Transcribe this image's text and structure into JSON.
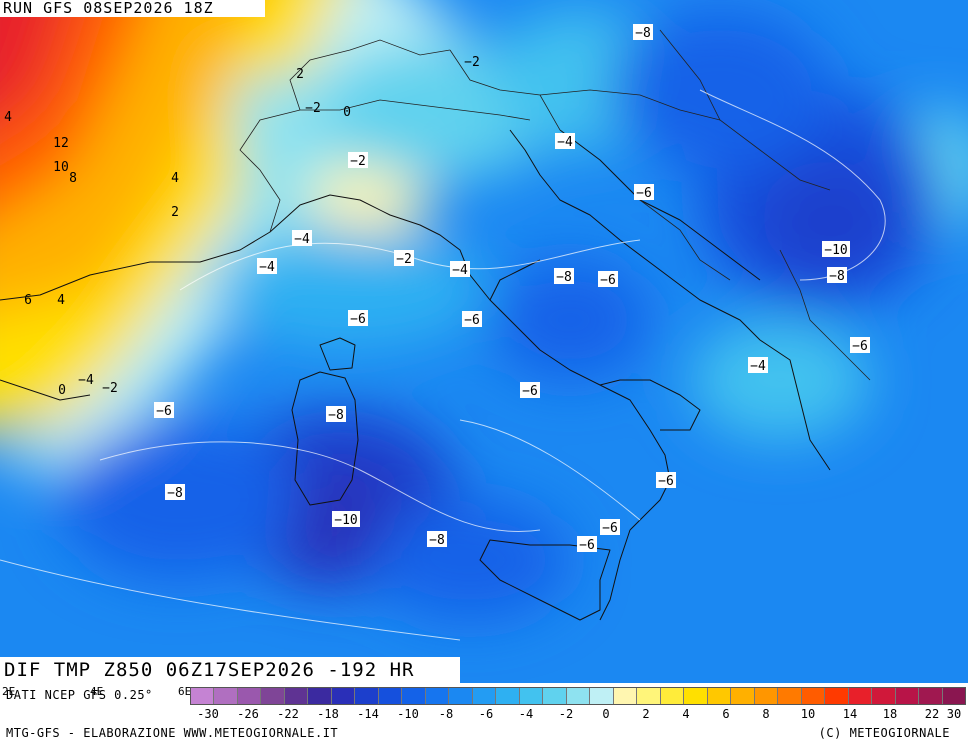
{
  "header": {
    "run_label": "RUN GFS 08SEP2026 18Z"
  },
  "field": {
    "title": "DIF TMP Z850 06Z17SEP2026 -192 HR"
  },
  "footer": {
    "source": "DATI NCEP GFS 0.25°",
    "credits_left": "MTG-GFS - ELABORAZIONE WWW.METEOGIORNALE.IT",
    "credits_right": "(C) METEOGIORNALE"
  },
  "grid_ticks": [
    "2E",
    "4E",
    "6E"
  ],
  "colorbar": {
    "colors": [
      "#c583d3",
      "#b06fc0",
      "#9a58ad",
      "#7f4597",
      "#5f3393",
      "#3b2aa0",
      "#2a2fb8",
      "#1c3fcc",
      "#1550dd",
      "#1462e8",
      "#1675ef",
      "#1b88f2",
      "#239cf3",
      "#2eb0f2",
      "#42c2ef",
      "#60d2ee",
      "#8ee2f0",
      "#bff0f5",
      "#fff6b0",
      "#fff57a",
      "#ffec3a",
      "#ffe000",
      "#ffc800",
      "#ffb000",
      "#ff9600",
      "#ff7a00",
      "#ff5c00",
      "#ff3a00",
      "#e8202a",
      "#d0183a",
      "#b81448",
      "#a01850",
      "#8a1650"
    ],
    "tick_labels": [
      "-30",
      "-26",
      "-22",
      "-18",
      "-14",
      "-10",
      "-8",
      "-6",
      "-4",
      "-2",
      "0",
      "2",
      "4",
      "6",
      "8",
      "10",
      "14",
      "18",
      "22",
      "30"
    ]
  },
  "map_labels": [
    {
      "text": "-8",
      "boxed": true
    },
    {
      "text": "-2",
      "boxed": false
    },
    {
      "text": "2",
      "boxed": false
    },
    {
      "text": "-2",
      "boxed": false
    },
    {
      "text": "0",
      "boxed": false
    },
    {
      "text": "4",
      "boxed": false
    },
    {
      "text": "12",
      "boxed": false
    },
    {
      "text": "10",
      "boxed": false
    },
    {
      "text": "8",
      "boxed": false
    },
    {
      "text": "4",
      "boxed": false
    },
    {
      "text": "2",
      "boxed": false
    },
    {
      "text": "-2",
      "boxed": true
    },
    {
      "text": "-4",
      "boxed": true
    },
    {
      "text": "-6",
      "boxed": true
    },
    {
      "text": "-4",
      "boxed": true
    },
    {
      "text": "-4",
      "boxed": true
    },
    {
      "text": "-2",
      "boxed": true
    },
    {
      "text": "-4",
      "boxed": true
    },
    {
      "text": "-8",
      "boxed": true
    },
    {
      "text": "-6",
      "boxed": true
    },
    {
      "text": "-10",
      "boxed": true
    },
    {
      "text": "-8",
      "boxed": true
    },
    {
      "text": "6",
      "boxed": false
    },
    {
      "text": "4",
      "boxed": false
    },
    {
      "text": "-6",
      "boxed": true
    },
    {
      "text": "-6",
      "boxed": true
    },
    {
      "text": "-6",
      "boxed": true
    },
    {
      "text": "-4",
      "boxed": true
    },
    {
      "text": "0",
      "boxed": false
    },
    {
      "text": "-4",
      "boxed": false
    },
    {
      "text": "-2",
      "boxed": false
    },
    {
      "text": "-6",
      "boxed": true
    },
    {
      "text": "-6",
      "boxed": true
    },
    {
      "text": "-8",
      "boxed": true
    },
    {
      "text": "-8",
      "boxed": true
    },
    {
      "text": "-10",
      "boxed": true
    },
    {
      "text": "-6",
      "boxed": true
    },
    {
      "text": "-6",
      "boxed": true
    },
    {
      "text": "-6",
      "boxed": true
    },
    {
      "text": "-8",
      "boxed": true
    }
  ]
}
